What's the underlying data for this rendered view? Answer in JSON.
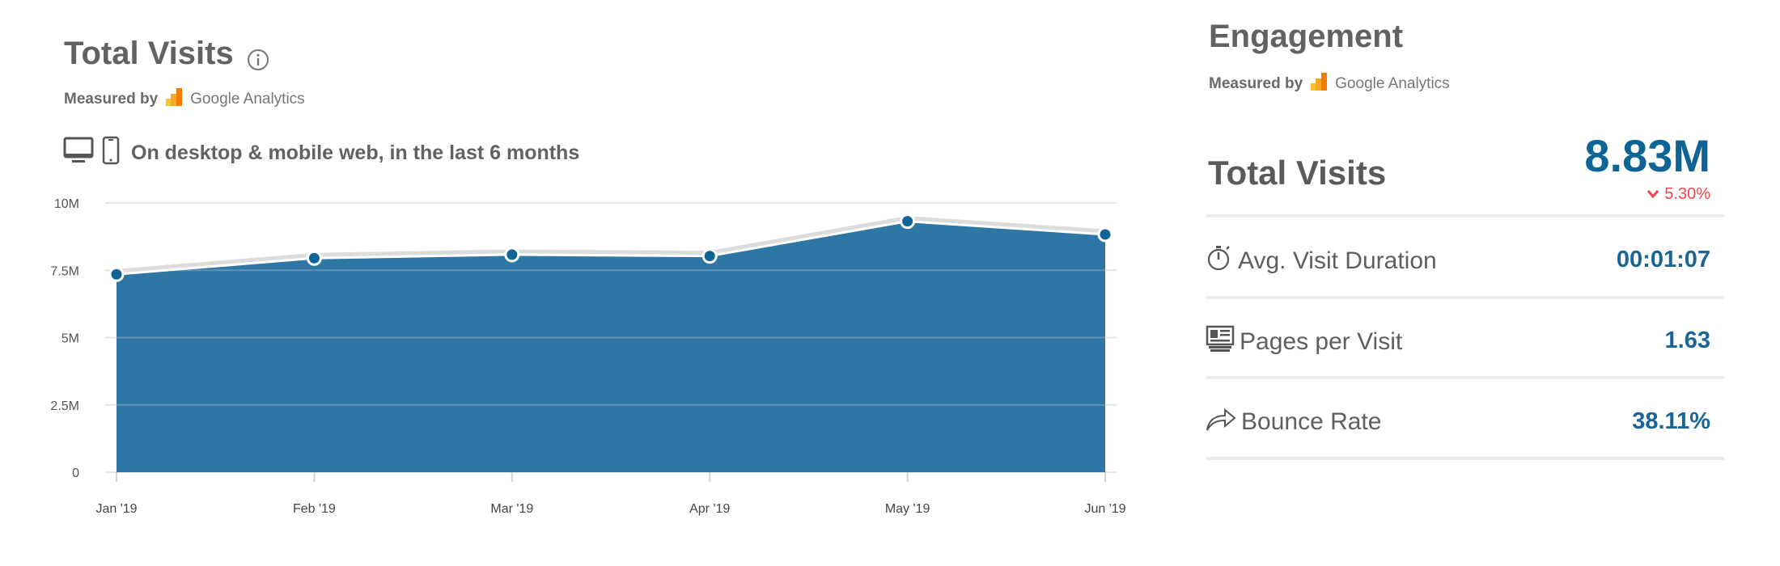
{
  "left": {
    "title": "Total Visits",
    "info_icon": "info-icon",
    "measured_by": "Measured by",
    "provider": "Google Analytics",
    "subtitle": "On desktop & mobile web, in the last 6 months"
  },
  "chart_data": {
    "type": "area",
    "categories": [
      "Jan '19",
      "Feb '19",
      "Mar '19",
      "Apr '19",
      "May '19",
      "Jun '19"
    ],
    "series": [
      {
        "values": [
          7350000,
          7950000,
          8080000,
          8030000,
          9320000,
          8830000
        ]
      }
    ],
    "yticks": [
      "0",
      "2.5M",
      "5M",
      "7.5M",
      "10M"
    ],
    "ytick_values": [
      0,
      2500000,
      5000000,
      7500000,
      10000000
    ],
    "ylim": [
      0,
      10000000
    ],
    "grid": true,
    "colors": {
      "fill": "#2e76a3",
      "point": "#0f6496",
      "line": "#ffffff"
    }
  },
  "right": {
    "title": "Engagement",
    "measured_by": "Measured by",
    "provider": "Google Analytics",
    "total_visits": {
      "label": "Total Visits",
      "value": "8.83M",
      "change": "5.30%",
      "change_direction": "down",
      "change_color": "#e8474c"
    },
    "metrics": [
      {
        "icon": "stopwatch-icon",
        "label": "Avg. Visit Duration",
        "value": "00:01:07"
      },
      {
        "icon": "pages-icon",
        "label": "Pages per Visit",
        "value": "1.63"
      },
      {
        "icon": "bounce-arrow-icon",
        "label": "Bounce Rate",
        "value": "38.11%"
      }
    ],
    "value_color": "#1a6496"
  }
}
